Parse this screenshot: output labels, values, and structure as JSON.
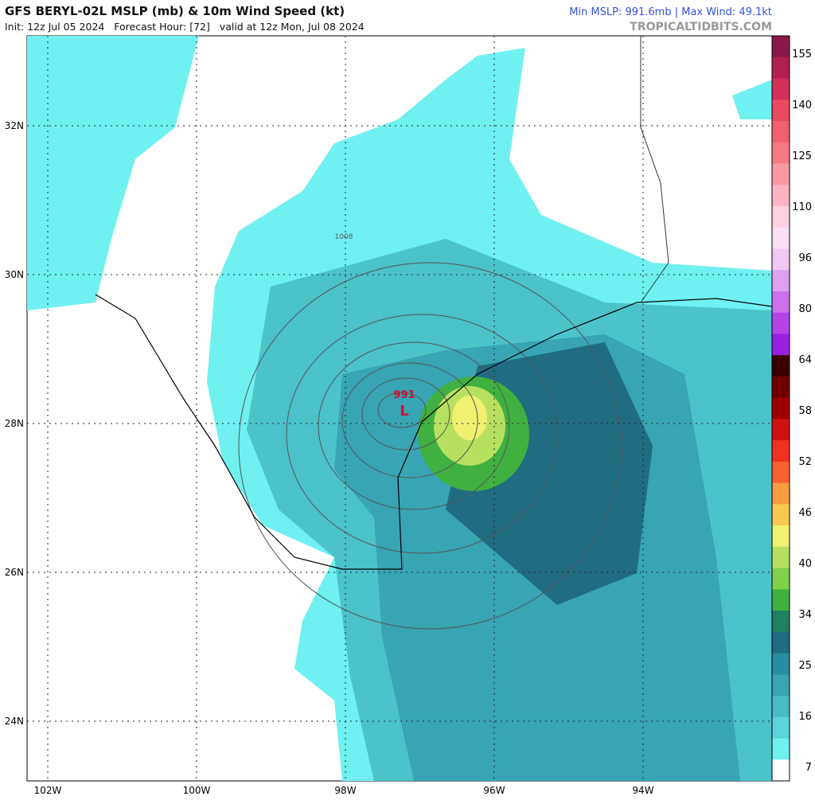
{
  "header": {
    "title": "GFS BERYL-02L MSLP (mb) & 10m Wind Speed (kt)",
    "subtitle": "Init: 12z Jul 05 2024   Forecast Hour: [72]   valid at 12z Mon, Jul 08 2024",
    "stats": "Min MSLP: 991.6mb | Max Wind: 49.1kt",
    "source": "TROPICALTIDBITS.COM"
  },
  "map": {
    "lat_labels": [
      "32N",
      "30N",
      "28N",
      "26N",
      "24N"
    ],
    "lon_labels": [
      "102W",
      "100W",
      "98W",
      "96W",
      "94W"
    ],
    "low_pressure": "991",
    "low_symbol": "L",
    "isobar_label": "1008"
  },
  "colorbar": {
    "labels": [
      "155",
      "140",
      "125",
      "110",
      "96",
      "80",
      "64",
      "58",
      "52",
      "46",
      "40",
      "34",
      "25",
      "16",
      "7"
    ],
    "colors": [
      "#8b1a4a",
      "#b02050",
      "#d0305a",
      "#e84a60",
      "#f06070",
      "#f47a85",
      "#f898a5",
      "#fab4c4",
      "#fcd0e0",
      "#fae0f4",
      "#f0c8f4",
      "#e0a0f0",
      "#cc70ec",
      "#b444e8",
      "#9a20e0",
      "#3a0000",
      "#700000",
      "#a00000",
      "#d01010",
      "#f03020",
      "#f86030",
      "#f89a40",
      "#f8c850",
      "#f0f070",
      "#b8e060",
      "#80d048",
      "#40b040",
      "#208060",
      "#206c80",
      "#2a8ca0",
      "#38a4b4",
      "#48bcc4",
      "#5ad4d8",
      "#70f0f0",
      "#ffffff"
    ]
  }
}
